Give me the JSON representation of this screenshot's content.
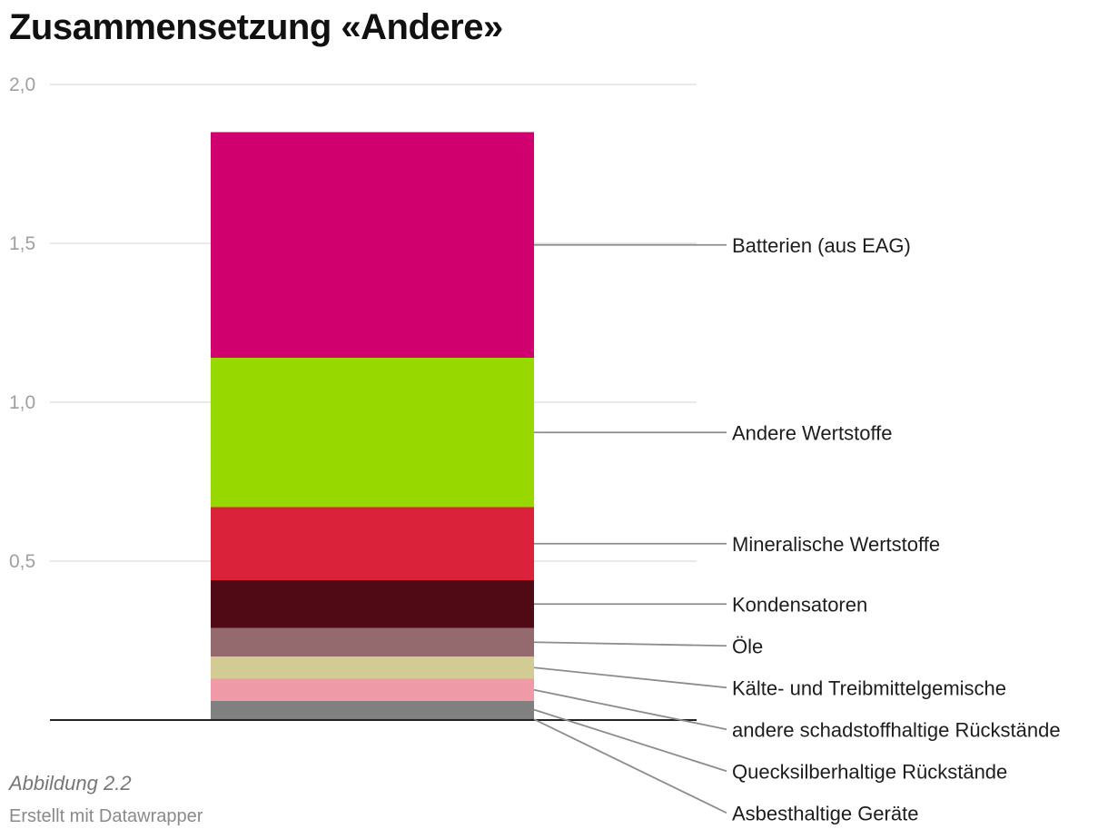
{
  "title": "Zusammensetzung «Andere»",
  "note": "Abbildung 2.2",
  "source": "Erstellt mit Datawrapper",
  "chart_data": {
    "type": "bar",
    "stacked": true,
    "categories": [
      ""
    ],
    "ylim": [
      0,
      2.0
    ],
    "yticks": [
      0,
      0.5,
      1.0,
      1.5,
      2.0
    ],
    "ytick_labels": [
      "",
      "0,5",
      "1,0",
      "1,5",
      "2,0"
    ],
    "grid": true,
    "series": [
      {
        "name": "Asbesthaltige Geräte",
        "values": [
          0.005
        ],
        "color": "#1b7f8c"
      },
      {
        "name": "Quecksilberhaltige Rückstände",
        "values": [
          0.055
        ],
        "color": "#808080"
      },
      {
        "name": "andere schadstoffhaltige Rückstände",
        "values": [
          0.07
        ],
        "color": "#ee9aa7"
      },
      {
        "name": "Kälte- und Treibmittelgemische",
        "values": [
          0.07
        ],
        "color": "#d2cb93"
      },
      {
        "name": "Öle",
        "values": [
          0.09
        ],
        "color": "#956a6e"
      },
      {
        "name": "Kondensatoren",
        "values": [
          0.15
        ],
        "color": "#500a15"
      },
      {
        "name": "Mineralische Wertstoffe",
        "values": [
          0.23
        ],
        "color": "#da233b"
      },
      {
        "name": "Andere Wertstoffe",
        "values": [
          0.47
        ],
        "color": "#96d800"
      },
      {
        "name": "Batterien (aus EAG)",
        "values": [
          0.71
        ],
        "color": "#d0006f"
      }
    ]
  }
}
